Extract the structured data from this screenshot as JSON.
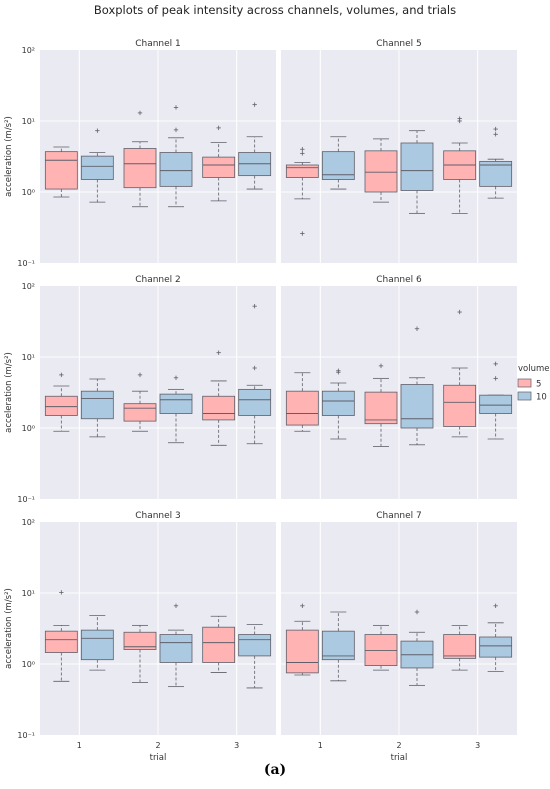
{
  "figure": {
    "title": "Boxplots of peak intensity across channels, volumes, and trials",
    "caption": "(a)",
    "ylabel": "acceleration (m/s²)",
    "xlabel": "trial",
    "legend": {
      "title": "volume",
      "placement": "right",
      "entries": [
        "5",
        "10"
      ]
    },
    "colors": {
      "volume_5": "#ffb3b3",
      "volume_10": "#abc9e0",
      "panel_bg": "#eaeaf2",
      "grid": "#ffffff",
      "edge": "#5f5f6a"
    }
  },
  "chart_data": {
    "type": "box",
    "yscale": "log",
    "ylim": [
      0.1,
      100
    ],
    "yticks": [
      "10⁻¹",
      "10⁰",
      "10¹",
      "10²"
    ],
    "categories": [
      "1",
      "2",
      "3"
    ],
    "grid": true,
    "panels": [
      {
        "title": "Channel 1",
        "boxes": [
          {
            "trial": "1",
            "volume": "5",
            "whislo": 0.85,
            "q1": 1.1,
            "med": 2.8,
            "q3": 3.7,
            "whishi": 4.3,
            "fliers": []
          },
          {
            "trial": "1",
            "volume": "10",
            "whislo": 0.72,
            "q1": 1.5,
            "med": 2.3,
            "q3": 3.2,
            "whishi": 3.6,
            "fliers": [
              7.3
            ]
          },
          {
            "trial": "2",
            "volume": "5",
            "whislo": 0.62,
            "q1": 1.15,
            "med": 2.5,
            "q3": 4.1,
            "whishi": 5.1,
            "fliers": [
              13
            ]
          },
          {
            "trial": "2",
            "volume": "10",
            "whislo": 0.62,
            "q1": 1.2,
            "med": 2.0,
            "q3": 3.6,
            "whishi": 5.8,
            "fliers": [
              7.5,
              15.5
            ]
          },
          {
            "trial": "3",
            "volume": "5",
            "whislo": 0.75,
            "q1": 1.6,
            "med": 2.4,
            "q3": 3.1,
            "whishi": 5.0,
            "fliers": [
              8.0
            ]
          },
          {
            "trial": "3",
            "volume": "10",
            "whislo": 1.1,
            "q1": 1.7,
            "med": 2.5,
            "q3": 3.6,
            "whishi": 6.0,
            "fliers": [
              17
            ]
          }
        ]
      },
      {
        "title": "Channel 5",
        "boxes": [
          {
            "trial": "1",
            "volume": "5",
            "whislo": 0.8,
            "q1": 1.6,
            "med": 2.2,
            "q3": 2.4,
            "whishi": 2.6,
            "fliers": [
              0.26,
              3.5,
              4.0
            ]
          },
          {
            "trial": "1",
            "volume": "10",
            "whislo": 1.1,
            "q1": 1.5,
            "med": 1.75,
            "q3": 3.7,
            "whishi": 6.0,
            "fliers": []
          },
          {
            "trial": "2",
            "volume": "5",
            "whislo": 0.72,
            "q1": 1.0,
            "med": 1.9,
            "q3": 3.8,
            "whishi": 5.6,
            "fliers": []
          },
          {
            "trial": "2",
            "volume": "10",
            "whislo": 0.5,
            "q1": 1.05,
            "med": 2.0,
            "q3": 4.9,
            "whishi": 7.3,
            "fliers": []
          },
          {
            "trial": "3",
            "volume": "5",
            "whislo": 0.5,
            "q1": 1.5,
            "med": 2.4,
            "q3": 3.8,
            "whishi": 4.9,
            "fliers": [
              10.0,
              10.8
            ]
          },
          {
            "trial": "3",
            "volume": "10",
            "whislo": 0.82,
            "q1": 1.2,
            "med": 2.4,
            "q3": 2.7,
            "whishi": 2.9,
            "fliers": [
              6.5,
              7.7
            ]
          }
        ]
      },
      {
        "title": "Channel 2",
        "boxes": [
          {
            "trial": "1",
            "volume": "5",
            "whislo": 0.9,
            "q1": 1.5,
            "med": 2.0,
            "q3": 2.8,
            "whishi": 3.9,
            "fliers": [
              5.6
            ]
          },
          {
            "trial": "1",
            "volume": "10",
            "whislo": 0.75,
            "q1": 1.35,
            "med": 2.6,
            "q3": 3.3,
            "whishi": 4.9,
            "fliers": []
          },
          {
            "trial": "2",
            "volume": "5",
            "whislo": 0.9,
            "q1": 1.25,
            "med": 1.9,
            "q3": 2.2,
            "whishi": 3.3,
            "fliers": [
              5.6
            ]
          },
          {
            "trial": "2",
            "volume": "10",
            "whislo": 0.62,
            "q1": 1.6,
            "med": 2.5,
            "q3": 3.0,
            "whishi": 3.5,
            "fliers": [
              5.1
            ]
          },
          {
            "trial": "3",
            "volume": "5",
            "whislo": 0.57,
            "q1": 1.3,
            "med": 1.6,
            "q3": 2.8,
            "whishi": 4.6,
            "fliers": [
              11.5
            ]
          },
          {
            "trial": "3",
            "volume": "10",
            "whislo": 0.6,
            "q1": 1.5,
            "med": 2.5,
            "q3": 3.5,
            "whishi": 4.0,
            "fliers": [
              7.0,
              52
            ]
          }
        ]
      },
      {
        "title": "Channel 6",
        "boxes": [
          {
            "trial": "1",
            "volume": "5",
            "whislo": 0.9,
            "q1": 1.1,
            "med": 1.6,
            "q3": 3.3,
            "whishi": 6.0,
            "fliers": []
          },
          {
            "trial": "1",
            "volume": "10",
            "whislo": 0.7,
            "q1": 1.5,
            "med": 2.4,
            "q3": 3.3,
            "whishi": 4.3,
            "fliers": [
              6.1,
              6.4
            ]
          },
          {
            "trial": "2",
            "volume": "5",
            "whislo": 0.55,
            "q1": 1.15,
            "med": 1.3,
            "q3": 3.2,
            "whishi": 5.0,
            "fliers": [
              7.5
            ]
          },
          {
            "trial": "2",
            "volume": "10",
            "whislo": 0.58,
            "q1": 1.0,
            "med": 1.35,
            "q3": 4.1,
            "whishi": 5.1,
            "fliers": [
              25
            ]
          },
          {
            "trial": "3",
            "volume": "5",
            "whislo": 0.75,
            "q1": 1.05,
            "med": 2.3,
            "q3": 4.0,
            "whishi": 7.0,
            "fliers": [
              43
            ]
          },
          {
            "trial": "3",
            "volume": "10",
            "whislo": 0.7,
            "q1": 1.6,
            "med": 2.1,
            "q3": 2.9,
            "whishi": 2.9,
            "fliers": [
              5.0,
              8.0
            ]
          }
        ]
      },
      {
        "title": "Channel 3",
        "boxes": [
          {
            "trial": "1",
            "volume": "5",
            "whislo": 0.57,
            "q1": 1.45,
            "med": 2.2,
            "q3": 2.9,
            "whishi": 3.5,
            "fliers": [
              10.2
            ]
          },
          {
            "trial": "1",
            "volume": "10",
            "whislo": 0.82,
            "q1": 1.15,
            "med": 2.3,
            "q3": 3.0,
            "whishi": 4.8,
            "fliers": []
          },
          {
            "trial": "2",
            "volume": "5",
            "whislo": 0.55,
            "q1": 1.6,
            "med": 1.75,
            "q3": 2.8,
            "whishi": 3.5,
            "fliers": []
          },
          {
            "trial": "2",
            "volume": "10",
            "whislo": 0.48,
            "q1": 1.05,
            "med": 2.0,
            "q3": 2.6,
            "whishi": 3.0,
            "fliers": [
              6.6
            ]
          },
          {
            "trial": "3",
            "volume": "5",
            "whislo": 0.76,
            "q1": 1.05,
            "med": 2.0,
            "q3": 3.3,
            "whishi": 4.7,
            "fliers": []
          },
          {
            "trial": "3",
            "volume": "10",
            "whislo": 0.46,
            "q1": 1.3,
            "med": 2.2,
            "q3": 2.6,
            "whishi": 3.6,
            "fliers": []
          }
        ]
      },
      {
        "title": "Channel 7",
        "boxes": [
          {
            "trial": "1",
            "volume": "5",
            "whislo": 0.7,
            "q1": 0.75,
            "med": 1.05,
            "q3": 3.0,
            "whishi": 4.0,
            "fliers": [
              6.6
            ]
          },
          {
            "trial": "1",
            "volume": "10",
            "whislo": 0.58,
            "q1": 1.15,
            "med": 1.3,
            "q3": 2.9,
            "whishi": 5.4,
            "fliers": []
          },
          {
            "trial": "2",
            "volume": "5",
            "whislo": 0.82,
            "q1": 0.95,
            "med": 1.55,
            "q3": 2.6,
            "whishi": 3.5,
            "fliers": []
          },
          {
            "trial": "2",
            "volume": "10",
            "whislo": 0.5,
            "q1": 0.88,
            "med": 1.35,
            "q3": 2.1,
            "whishi": 2.8,
            "fliers": [
              5.4
            ]
          },
          {
            "trial": "3",
            "volume": "5",
            "whislo": 0.82,
            "q1": 1.2,
            "med": 1.3,
            "q3": 2.6,
            "whishi": 3.5,
            "fliers": []
          },
          {
            "trial": "3",
            "volume": "10",
            "whislo": 0.78,
            "q1": 1.25,
            "med": 1.8,
            "q3": 2.4,
            "whishi": 3.8,
            "fliers": [
              6.6
            ]
          }
        ]
      }
    ]
  }
}
